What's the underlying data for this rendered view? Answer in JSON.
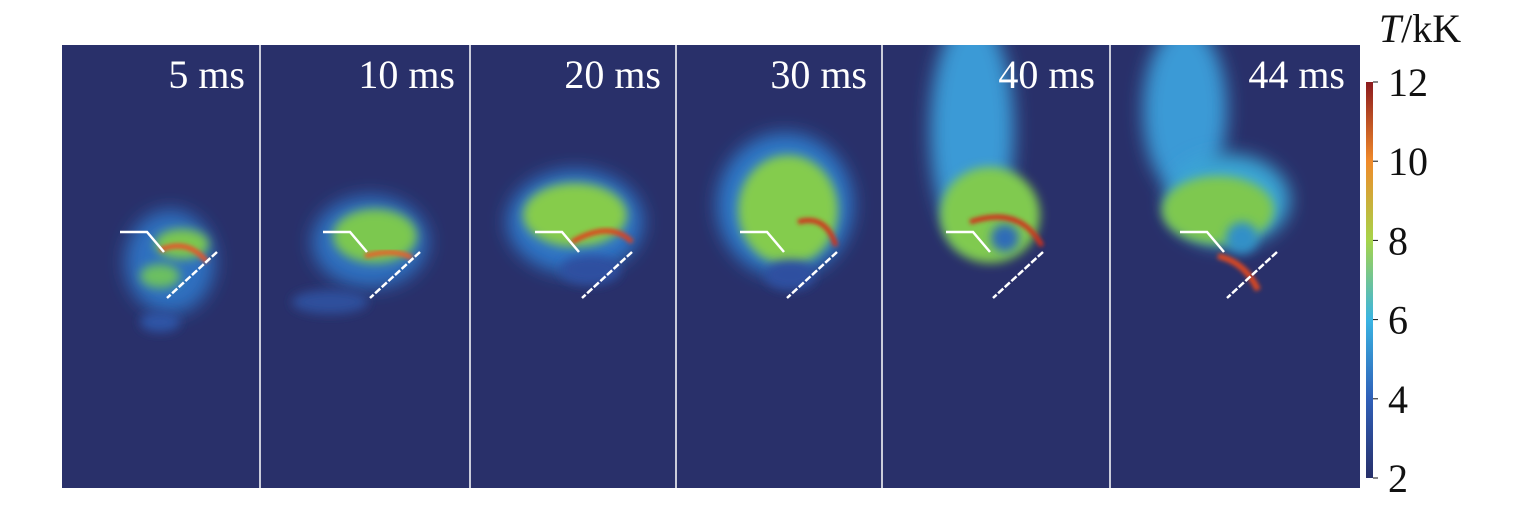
{
  "panels": [
    {
      "label": "5 ms"
    },
    {
      "label": "10 ms"
    },
    {
      "label": "20 ms"
    },
    {
      "label": "30 ms"
    },
    {
      "label": "40 ms"
    },
    {
      "label": "44 ms"
    }
  ],
  "colorbar": {
    "title_var": "T",
    "title_unit": "/kK",
    "range": [
      2,
      12
    ],
    "ticks": [
      2,
      4,
      6,
      8,
      10,
      12
    ]
  }
}
